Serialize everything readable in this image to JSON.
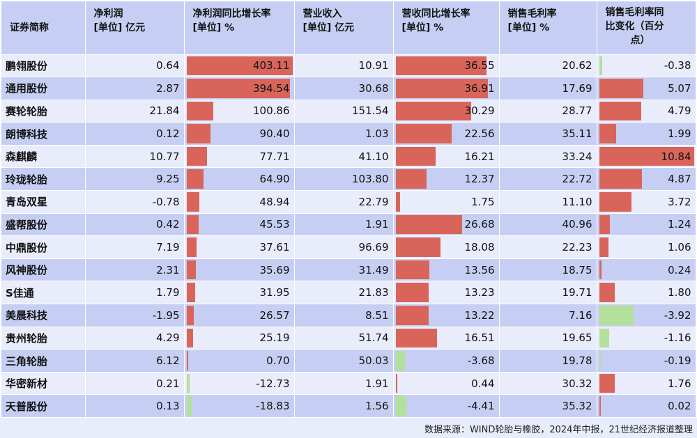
{
  "headers": {
    "name": "证券简称",
    "net_profit": [
      "净利润",
      "[单位] 亿元"
    ],
    "net_profit_yoy": [
      "净利润同比增长率",
      "[单位] %"
    ],
    "revenue": [
      "营业收入",
      "[单位] 亿元"
    ],
    "revenue_yoy": [
      "营收同比增长率",
      "[单位] %"
    ],
    "gross_margin": [
      "销售毛利率",
      "[单位] %"
    ],
    "gross_margin_change": [
      "销售毛利率同",
      "比变化（百分",
      "点）"
    ]
  },
  "colors": {
    "positive": "#d9655a",
    "negative": "#b3e09a",
    "header_bg": "#c6cff3",
    "alt_row_bg": "#e8ecfb"
  },
  "rows": [
    {
      "name": "鹏翎股份",
      "net_profit": "0.64",
      "net_profit_yoy": "403.11",
      "revenue": "10.91",
      "revenue_yoy": "36.55",
      "gross_margin": "20.62",
      "gross_margin_change": "-0.38"
    },
    {
      "name": "通用股份",
      "net_profit": "2.87",
      "net_profit_yoy": "394.54",
      "revenue": "30.68",
      "revenue_yoy": "36.91",
      "gross_margin": "17.69",
      "gross_margin_change": "5.07"
    },
    {
      "name": "赛轮轮胎",
      "net_profit": "21.84",
      "net_profit_yoy": "100.86",
      "revenue": "151.54",
      "revenue_yoy": "30.29",
      "gross_margin": "28.77",
      "gross_margin_change": "4.79"
    },
    {
      "name": "朗博科技",
      "net_profit": "0.12",
      "net_profit_yoy": "90.40",
      "revenue": "1.03",
      "revenue_yoy": "22.56",
      "gross_margin": "35.11",
      "gross_margin_change": "1.99"
    },
    {
      "name": "森麒麟",
      "net_profit": "10.77",
      "net_profit_yoy": "77.71",
      "revenue": "41.10",
      "revenue_yoy": "16.21",
      "gross_margin": "33.24",
      "gross_margin_change": "10.84"
    },
    {
      "name": "玲珑轮胎",
      "net_profit": "9.25",
      "net_profit_yoy": "64.90",
      "revenue": "103.80",
      "revenue_yoy": "12.37",
      "gross_margin": "22.72",
      "gross_margin_change": "4.87"
    },
    {
      "name": "青岛双星",
      "net_profit": "-0.78",
      "net_profit_yoy": "48.94",
      "revenue": "22.79",
      "revenue_yoy": "1.75",
      "gross_margin": "11.10",
      "gross_margin_change": "3.72"
    },
    {
      "name": "盛帮股份",
      "net_profit": "0.42",
      "net_profit_yoy": "45.53",
      "revenue": "1.91",
      "revenue_yoy": "26.68",
      "gross_margin": "40.96",
      "gross_margin_change": "1.24"
    },
    {
      "name": "中鼎股份",
      "net_profit": "7.19",
      "net_profit_yoy": "37.61",
      "revenue": "96.69",
      "revenue_yoy": "18.08",
      "gross_margin": "22.23",
      "gross_margin_change": "1.06"
    },
    {
      "name": "风神股份",
      "net_profit": "2.31",
      "net_profit_yoy": "35.69",
      "revenue": "31.49",
      "revenue_yoy": "13.56",
      "gross_margin": "18.75",
      "gross_margin_change": "0.24"
    },
    {
      "name": "S佳通",
      "net_profit": "1.79",
      "net_profit_yoy": "31.95",
      "revenue": "21.83",
      "revenue_yoy": "13.23",
      "gross_margin": "19.71",
      "gross_margin_change": "1.80"
    },
    {
      "name": "美晨科技",
      "net_profit": "-1.95",
      "net_profit_yoy": "26.57",
      "revenue": "8.51",
      "revenue_yoy": "13.22",
      "gross_margin": "7.16",
      "gross_margin_change": "-3.92"
    },
    {
      "name": "贵州轮胎",
      "net_profit": "4.29",
      "net_profit_yoy": "25.19",
      "revenue": "51.74",
      "revenue_yoy": "16.51",
      "gross_margin": "19.65",
      "gross_margin_change": "-1.16"
    },
    {
      "name": "三角轮胎",
      "net_profit": "6.12",
      "net_profit_yoy": "0.70",
      "revenue": "50.03",
      "revenue_yoy": "-3.68",
      "gross_margin": "19.78",
      "gross_margin_change": "-0.19"
    },
    {
      "name": "华密新材",
      "net_profit": "0.21",
      "net_profit_yoy": "-12.73",
      "revenue": "1.91",
      "revenue_yoy": "0.44",
      "gross_margin": "30.32",
      "gross_margin_change": "1.76"
    },
    {
      "name": "天普股份",
      "net_profit": "0.13",
      "net_profit_yoy": "-18.83",
      "revenue": "1.56",
      "revenue_yoy": "-4.41",
      "gross_margin": "35.32",
      "gross_margin_change": "0.02"
    }
  ],
  "footer": "数据来源：WIND轮胎与橡胶，2024年中报，21世纪经济报道整理"
}
